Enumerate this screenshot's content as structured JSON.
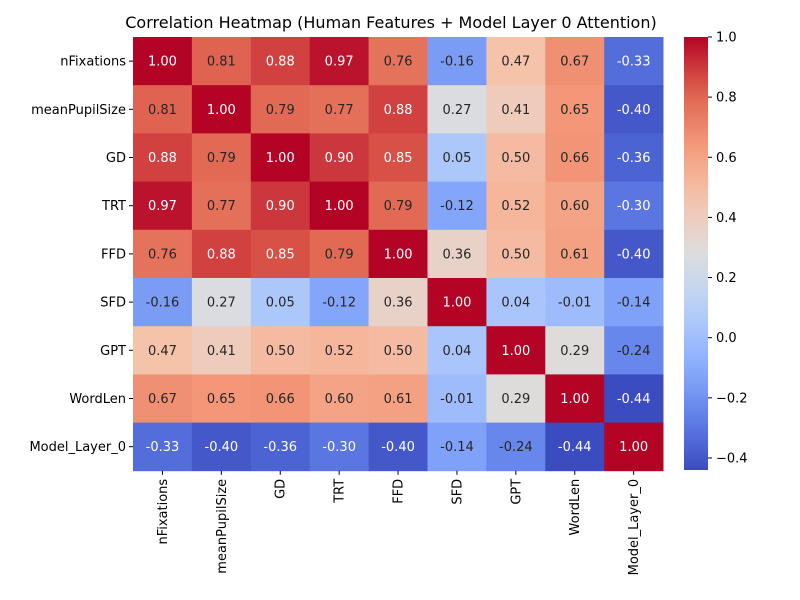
{
  "chart_data": {
    "type": "heatmap",
    "title": "Correlation Heatmap (Human Features + Model Layer 0 Attention)",
    "xlabel": "",
    "ylabel": "",
    "rows": [
      "nFixations",
      "meanPupilSize",
      "GD",
      "TRT",
      "FFD",
      "SFD",
      "GPT",
      "WordLen",
      "Model_Layer_0"
    ],
    "columns": [
      "nFixations",
      "meanPupilSize",
      "GD",
      "TRT",
      "FFD",
      "SFD",
      "GPT",
      "WordLen",
      "Model_Layer_0"
    ],
    "values": [
      [
        1.0,
        0.81,
        0.88,
        0.97,
        0.76,
        -0.16,
        0.47,
        0.67,
        -0.33
      ],
      [
        0.81,
        1.0,
        0.79,
        0.77,
        0.88,
        0.27,
        0.41,
        0.65,
        -0.4
      ],
      [
        0.88,
        0.79,
        1.0,
        0.9,
        0.85,
        0.05,
        0.5,
        0.66,
        -0.36
      ],
      [
        0.97,
        0.77,
        0.9,
        1.0,
        0.79,
        -0.12,
        0.52,
        0.6,
        -0.3
      ],
      [
        0.76,
        0.88,
        0.85,
        0.79,
        1.0,
        0.36,
        0.5,
        0.61,
        -0.4
      ],
      [
        -0.16,
        0.27,
        0.05,
        -0.12,
        0.36,
        1.0,
        0.04,
        -0.01,
        -0.14
      ],
      [
        0.47,
        0.41,
        0.5,
        0.52,
        0.5,
        0.04,
        1.0,
        0.29,
        -0.24
      ],
      [
        0.67,
        0.65,
        0.66,
        0.6,
        0.61,
        -0.01,
        0.29,
        1.0,
        -0.44
      ],
      [
        -0.33,
        -0.4,
        -0.36,
        -0.3,
        -0.4,
        -0.14,
        -0.24,
        -0.44,
        1.0
      ]
    ],
    "value_format": "2 decimals",
    "colormap": "coolwarm",
    "color_range": [
      -0.44,
      1.0
    ],
    "colorbar": {
      "ticks": [
        1.0,
        0.8,
        0.6,
        0.4,
        0.2,
        0.0,
        -0.2,
        -0.4
      ],
      "tick_labels": [
        "1.0",
        "0.8",
        "0.6",
        "0.4",
        "0.2",
        "0.0",
        "−0.2",
        "−0.4"
      ]
    },
    "grid": false,
    "legend": "colorbar-right"
  }
}
